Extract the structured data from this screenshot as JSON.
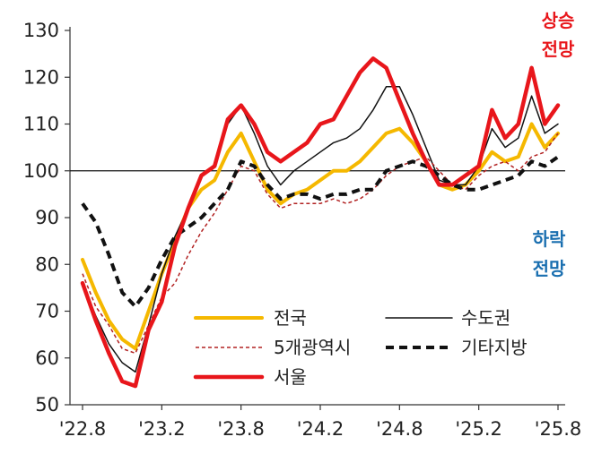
{
  "chart_data": {
    "type": "line",
    "ylim": [
      50,
      130
    ],
    "yticks": [
      50,
      60,
      70,
      80,
      90,
      100,
      110,
      120,
      130
    ],
    "xtick_labels": [
      "'22.8",
      "'23.2",
      "'23.8",
      "'24.2",
      "'24.8",
      "'25.2",
      "'25.8"
    ],
    "reference_line": 100,
    "annotations": {
      "up": {
        "line1": "상승",
        "line2": "전망",
        "color": "#e8161b"
      },
      "down": {
        "line1": "하락",
        "line2": "전망",
        "color": "#1a6fb0"
      }
    },
    "legend_placement": "bottom-right",
    "series": [
      {
        "name": "전국",
        "color": "#f5b800",
        "style": "solid",
        "width": 4,
        "values": [
          81,
          74,
          68,
          64,
          62,
          70,
          78,
          85,
          92,
          96,
          98,
          104,
          108,
          102,
          96,
          93,
          95,
          96,
          98,
          100,
          100,
          102,
          105,
          108,
          109,
          106,
          102,
          97,
          96,
          97,
          100,
          104,
          102,
          103,
          110,
          105,
          108
        ]
      },
      {
        "name": "수도권",
        "color": "#111111",
        "style": "solid",
        "width": 1.5,
        "values": [
          76,
          69,
          63,
          59,
          57,
          67,
          78,
          86,
          92,
          99,
          101,
          110,
          114,
          108,
          101,
          97,
          100,
          102,
          104,
          106,
          107,
          109,
          113,
          118,
          118,
          112,
          105,
          98,
          97,
          97,
          101,
          109,
          105,
          107,
          116,
          108,
          110
        ]
      },
      {
        "name": "5개광역시",
        "color": "#b22222",
        "style": "dashed",
        "width": 1.5,
        "values": [
          78,
          71,
          67,
          62,
          61,
          67,
          73,
          76,
          82,
          87,
          91,
          96,
          101,
          100,
          95,
          92,
          93,
          93,
          93,
          94,
          93,
          94,
          96,
          99,
          101,
          102,
          103,
          100,
          97,
          96,
          99,
          101,
          102,
          100,
          103,
          104,
          108
        ]
      },
      {
        "name": "기타지방",
        "color": "#111111",
        "style": "dashed-bold",
        "width": 4,
        "values": [
          93,
          89,
          82,
          74,
          71,
          75,
          81,
          86,
          88,
          90,
          93,
          96,
          102,
          101,
          97,
          94,
          95,
          95,
          94,
          95,
          95,
          96,
          96,
          100,
          101,
          102,
          101,
          99,
          97,
          96,
          96,
          97,
          98,
          99,
          102,
          101,
          103
        ]
      },
      {
        "name": "서울",
        "color": "#e8161b",
        "style": "solid",
        "width": 4.5,
        "values": [
          76,
          68,
          61,
          55,
          54,
          66,
          72,
          84,
          92,
          99,
          101,
          111,
          114,
          110,
          104,
          102,
          104,
          106,
          110,
          111,
          116,
          121,
          124,
          122,
          115,
          108,
          102,
          97,
          97,
          99,
          101,
          113,
          107,
          110,
          122,
          110,
          114
        ]
      }
    ]
  }
}
